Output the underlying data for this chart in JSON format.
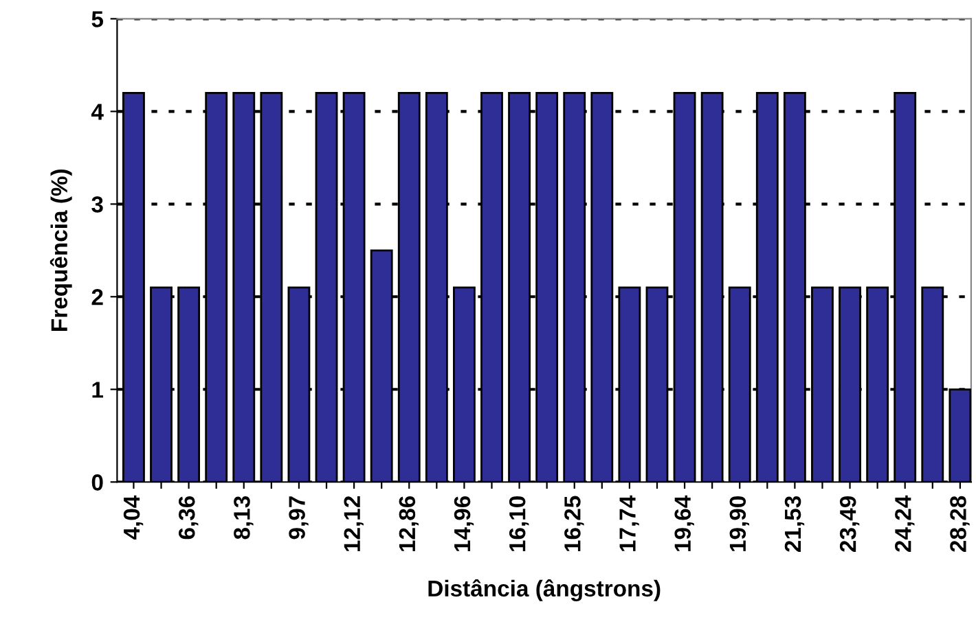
{
  "chart_data": {
    "type": "bar",
    "xlabel": "Distância (ângstrons)",
    "ylabel": "Frequência (%)",
    "categories": [
      "4,04",
      null,
      "6,36",
      null,
      "8,13",
      null,
      "9,97",
      null,
      "12,12",
      null,
      "12,86",
      null,
      "14,96",
      null,
      "16,10",
      null,
      "16,25",
      null,
      "17,74",
      null,
      "19,64",
      null,
      "19,90",
      null,
      "21,53",
      null,
      "23,49",
      null,
      "24,24",
      null,
      "28,28"
    ],
    "values": [
      4.2,
      2.1,
      2.1,
      4.2,
      4.2,
      4.2,
      2.1,
      4.2,
      4.2,
      2.5,
      4.2,
      4.2,
      2.1,
      4.2,
      4.2,
      4.2,
      4.2,
      4.2,
      2.1,
      2.1,
      4.2,
      4.2,
      2.1,
      4.2,
      4.2,
      2.1,
      2.1,
      2.1,
      4.2,
      2.1,
      1.0
    ],
    "color": "#2e2e96",
    "ylim": [
      0,
      5
    ],
    "yticks": [
      0,
      1,
      2,
      3,
      4,
      5
    ],
    "grid": "y"
  }
}
